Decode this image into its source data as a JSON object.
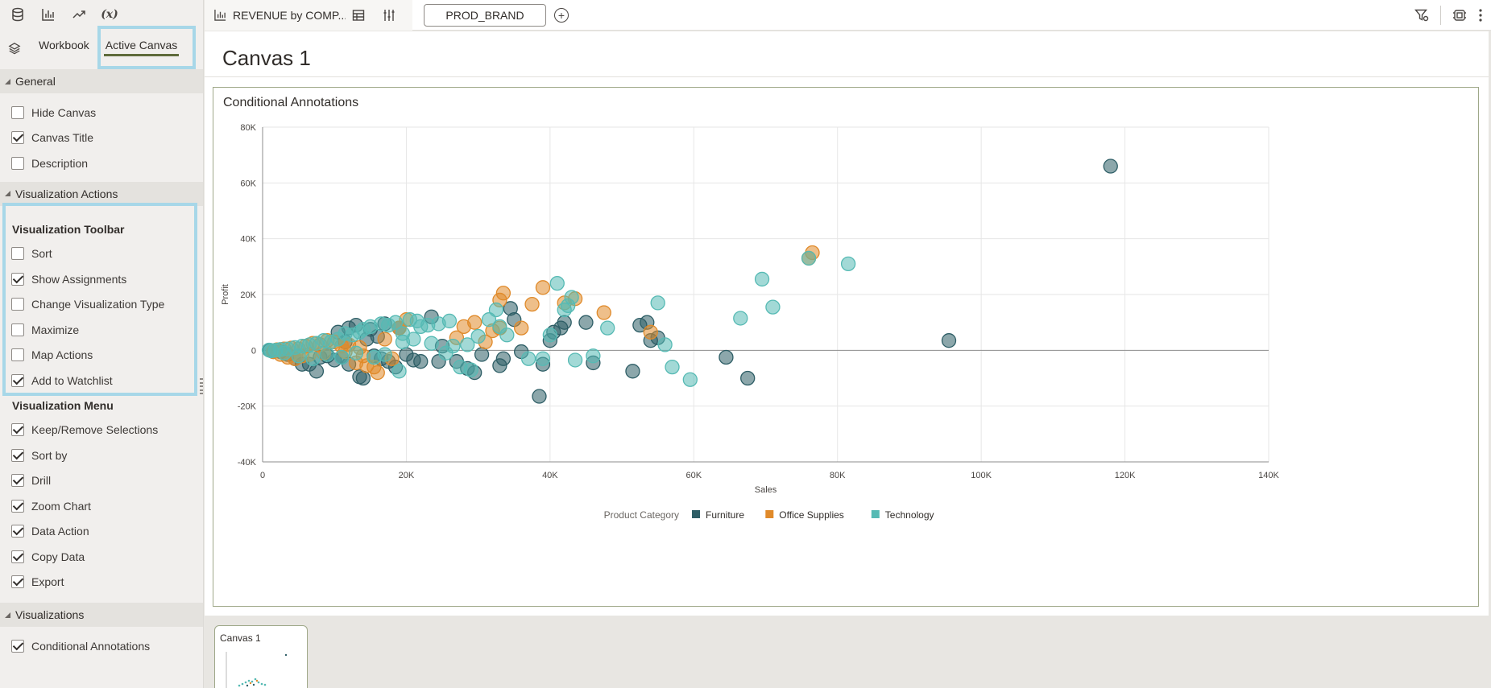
{
  "left_panel": {
    "toolbar_icons": [
      "data-icon",
      "visualizations-icon",
      "analytics-icon",
      "calculations-icon"
    ],
    "calc_glyph": "(x)",
    "tabs": [
      {
        "label": "Workbook",
        "active": false
      },
      {
        "label": "Active Canvas",
        "active": true
      }
    ],
    "general": {
      "title": "General",
      "items": [
        {
          "label": "Hide Canvas",
          "checked": false
        },
        {
          "label": "Canvas Title",
          "checked": true
        },
        {
          "label": "Description",
          "checked": false
        }
      ]
    },
    "viz_actions": {
      "title": "Visualization Actions",
      "toolbar": {
        "title": "Visualization Toolbar",
        "items": [
          {
            "label": "Sort",
            "checked": false
          },
          {
            "label": "Show Assignments",
            "checked": true
          },
          {
            "label": "Change Visualization Type",
            "checked": false
          },
          {
            "label": "Maximize",
            "checked": false
          },
          {
            "label": "Map Actions",
            "checked": false
          },
          {
            "label": "Add to Watchlist",
            "checked": true
          }
        ]
      },
      "menu": {
        "title": "Visualization Menu",
        "items": [
          {
            "label": "Keep/Remove Selections",
            "checked": true
          },
          {
            "label": "Sort by",
            "checked": true
          },
          {
            "label": "Drill",
            "checked": true
          },
          {
            "label": "Zoom Chart",
            "checked": true
          },
          {
            "label": "Data Action",
            "checked": true
          },
          {
            "label": "Copy Data",
            "checked": true
          },
          {
            "label": "Export",
            "checked": true
          }
        ]
      }
    },
    "visualizations": {
      "title": "Visualizations",
      "items": [
        {
          "label": "Conditional Annotations",
          "checked": true
        }
      ]
    }
  },
  "top_bar": {
    "viz_title": "REVENUE by COMP...",
    "filter_pill": "PROD_BRAND",
    "add_glyph": "+"
  },
  "canvas": {
    "title": "Canvas 1",
    "viz_title": "Conditional Annotations"
  },
  "bottom": {
    "thumb_label": "Canvas 1"
  },
  "colors": {
    "Furniture": "#2e5e66",
    "Office Supplies": "#e08a2a",
    "Technology": "#56bab4"
  },
  "chart_data": {
    "type": "scatter",
    "title": "Conditional Annotations",
    "xlabel": "Sales",
    "ylabel": "Profit",
    "xlim": [
      0,
      140000
    ],
    "ylim": [
      -40000,
      80000
    ],
    "x_ticks": [
      "0",
      "20K",
      "40K",
      "60K",
      "80K",
      "100K",
      "120K",
      "140K"
    ],
    "y_ticks": [
      "80K",
      "60K",
      "40K",
      "20K",
      "0",
      "-20K",
      "-40K"
    ],
    "grid": true,
    "legend": {
      "title": "Product Category",
      "placement": "bottom",
      "entries": [
        "Furniture",
        "Office Supplies",
        "Technology"
      ]
    },
    "series": [
      {
        "name": "Furniture",
        "points": [
          [
            118000,
            66000
          ],
          [
            95500,
            3500
          ],
          [
            67500,
            -10000
          ],
          [
            64500,
            -2500
          ],
          [
            55000,
            4500
          ],
          [
            54000,
            3500
          ],
          [
            53500,
            10000
          ],
          [
            52500,
            9000
          ],
          [
            51500,
            -7500
          ],
          [
            46000,
            -4500
          ],
          [
            45000,
            10000
          ],
          [
            42000,
            10000
          ],
          [
            41500,
            8000
          ],
          [
            40500,
            6500
          ],
          [
            40000,
            3500
          ],
          [
            39000,
            -5000
          ],
          [
            38500,
            -16500
          ],
          [
            36000,
            -500
          ],
          [
            35000,
            11000
          ],
          [
            34500,
            15000
          ],
          [
            33500,
            -3000
          ],
          [
            33000,
            -5500
          ],
          [
            30500,
            -1500
          ],
          [
            29500,
            -8000
          ],
          [
            28500,
            -6500
          ],
          [
            27000,
            -4000
          ],
          [
            25000,
            1500
          ],
          [
            24500,
            -4000
          ],
          [
            23500,
            12000
          ],
          [
            22000,
            -4000
          ],
          [
            21000,
            -3500
          ],
          [
            20000,
            -1500
          ],
          [
            18500,
            -6000
          ],
          [
            17500,
            -4000
          ],
          [
            16500,
            -3000
          ],
          [
            15500,
            -2000
          ],
          [
            14000,
            -10000
          ],
          [
            13500,
            -9500
          ],
          [
            12000,
            -5000
          ],
          [
            11000,
            -2500
          ],
          [
            10000,
            -3500
          ],
          [
            9000,
            -2000
          ],
          [
            8000,
            -2500
          ],
          [
            7500,
            -7500
          ],
          [
            6500,
            -5000
          ],
          [
            5500,
            -5000
          ],
          [
            4500,
            -3000
          ],
          [
            3500,
            -1500
          ],
          [
            2500,
            -500
          ],
          [
            1500,
            -500
          ],
          [
            1000,
            0
          ],
          [
            12000,
            8000
          ],
          [
            13000,
            9000
          ],
          [
            10500,
            6500
          ],
          [
            15000,
            7500
          ],
          [
            17000,
            9500
          ],
          [
            19000,
            8000
          ],
          [
            14500,
            4000
          ],
          [
            11500,
            3000
          ],
          [
            16000,
            5000
          ]
        ]
      },
      {
        "name": "Office Supplies",
        "points": [
          [
            76500,
            35000
          ],
          [
            76000,
            33000
          ],
          [
            47500,
            13500
          ],
          [
            43500,
            18500
          ],
          [
            42000,
            17000
          ],
          [
            39000,
            22500
          ],
          [
            37500,
            16500
          ],
          [
            36000,
            8000
          ],
          [
            33500,
            20500
          ],
          [
            33000,
            18000
          ],
          [
            33000,
            8000
          ],
          [
            32000,
            7000
          ],
          [
            31000,
            3000
          ],
          [
            29500,
            10000
          ],
          [
            28000,
            8500
          ],
          [
            27000,
            4500
          ],
          [
            20000,
            11000
          ],
          [
            19000,
            8000
          ],
          [
            17000,
            4000
          ],
          [
            16000,
            -8000
          ],
          [
            15500,
            -6000
          ],
          [
            14500,
            -5500
          ],
          [
            14000,
            -2000
          ],
          [
            13000,
            -4500
          ],
          [
            12000,
            2000
          ],
          [
            11000,
            1500
          ],
          [
            10000,
            3000
          ],
          [
            9000,
            3500
          ],
          [
            8000,
            2000
          ],
          [
            7000,
            2500
          ],
          [
            6000,
            1500
          ],
          [
            5000,
            500
          ],
          [
            4000,
            800
          ],
          [
            3000,
            500
          ],
          [
            2000,
            200
          ],
          [
            1500,
            -500
          ],
          [
            2500,
            -1500
          ],
          [
            3500,
            -2500
          ],
          [
            4500,
            -3000
          ],
          [
            5500,
            -2000
          ],
          [
            6500,
            -1500
          ],
          [
            8500,
            -1000
          ],
          [
            11500,
            -500
          ],
          [
            13500,
            1000
          ],
          [
            18000,
            -3000
          ],
          [
            54000,
            6500
          ]
        ]
      },
      {
        "name": "Technology",
        "points": [
          [
            81500,
            31000
          ],
          [
            76000,
            33000
          ],
          [
            69500,
            25500
          ],
          [
            71000,
            15500
          ],
          [
            66500,
            11500
          ],
          [
            55000,
            17000
          ],
          [
            56000,
            2000
          ],
          [
            57000,
            -6000
          ],
          [
            59500,
            -10500
          ],
          [
            48000,
            8000
          ],
          [
            46000,
            -2000
          ],
          [
            43500,
            -3500
          ],
          [
            43000,
            19000
          ],
          [
            42500,
            16000
          ],
          [
            42000,
            14500
          ],
          [
            41000,
            24000
          ],
          [
            40000,
            5500
          ],
          [
            39000,
            -3000
          ],
          [
            37000,
            -3000
          ],
          [
            34000,
            5500
          ],
          [
            33000,
            8500
          ],
          [
            32500,
            14500
          ],
          [
            31500,
            11000
          ],
          [
            30000,
            5000
          ],
          [
            29000,
            -7000
          ],
          [
            27500,
            -6000
          ],
          [
            26000,
            10500
          ],
          [
            24500,
            9500
          ],
          [
            23000,
            9000
          ],
          [
            22000,
            8500
          ],
          [
            21500,
            10500
          ],
          [
            20500,
            11000
          ],
          [
            19500,
            6000
          ],
          [
            19000,
            -7500
          ],
          [
            18500,
            10000
          ],
          [
            17500,
            9000
          ],
          [
            16500,
            9500
          ],
          [
            15000,
            8500
          ],
          [
            14000,
            7500
          ],
          [
            13500,
            6500
          ],
          [
            12500,
            5500
          ],
          [
            11500,
            6000
          ],
          [
            10500,
            4000
          ],
          [
            9500,
            3000
          ],
          [
            8500,
            3500
          ],
          [
            7500,
            2500
          ],
          [
            6500,
            2000
          ],
          [
            5500,
            1500
          ],
          [
            4500,
            1000
          ],
          [
            3500,
            500
          ],
          [
            2500,
            300
          ],
          [
            1800,
            0
          ],
          [
            1200,
            -200
          ],
          [
            900,
            100
          ],
          [
            3000,
            -1000
          ],
          [
            5000,
            -2000
          ],
          [
            7000,
            -3000
          ],
          [
            9000,
            -1500
          ],
          [
            11000,
            -2500
          ],
          [
            13000,
            -1000
          ],
          [
            15500,
            -2500
          ],
          [
            17000,
            -1500
          ],
          [
            19500,
            3000
          ],
          [
            21000,
            4000
          ],
          [
            23500,
            2500
          ],
          [
            25500,
            -1000
          ],
          [
            26500,
            1500
          ],
          [
            28500,
            2000
          ]
        ]
      }
    ]
  }
}
